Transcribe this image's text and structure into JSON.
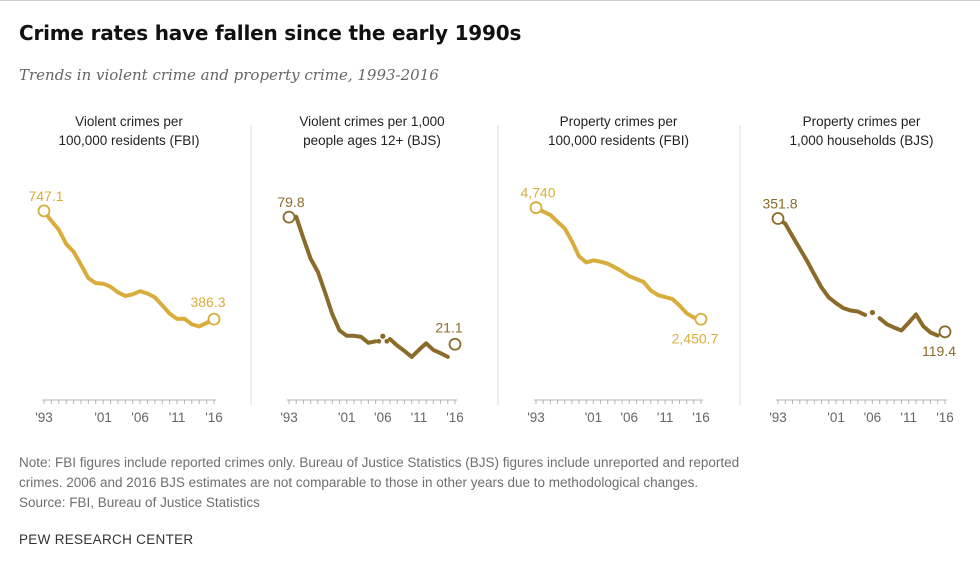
{
  "header": {
    "title": "Crime rates have fallen since the early 1990s",
    "subtitle": "Trends in violent crime and property crime, 1993-2016"
  },
  "footer": {
    "note_line1": "Note: FBI figures include reported crimes only. Bureau of Justice Statistics (BJS) figures include unreported and reported",
    "note_line2": "crimes. 2006 and 2016 BJS estimates are not comparable to those in other years due to methodological changes.",
    "source": "Source: FBI, Bureau of Justice Statistics",
    "credit": "PEW RESEARCH CENTER"
  },
  "colors": {
    "fbi": "#d9ad3c",
    "bjs": "#8b6b2a",
    "axis": "#b5b5b5",
    "tick_label": "#666666",
    "divider": "#dddddd"
  },
  "chart_data": [
    {
      "type": "line",
      "title_line1": "Violent crimes per",
      "title_line2": "100,000 residents (FBI)",
      "color_key": "fbi",
      "x": [
        1993,
        1994,
        1995,
        1996,
        1997,
        1998,
        1999,
        2000,
        2001,
        2002,
        2003,
        2004,
        2005,
        2006,
        2007,
        2008,
        2009,
        2010,
        2011,
        2012,
        2013,
        2014,
        2015,
        2016
      ],
      "values": [
        747.1,
        713.6,
        684.5,
        636.6,
        611.0,
        567.6,
        523.0,
        506.5,
        504.5,
        494.4,
        475.8,
        463.2,
        469.0,
        479.3,
        471.8,
        458.6,
        431.9,
        404.5,
        387.1,
        387.8,
        369.1,
        361.6,
        373.7,
        386.3
      ],
      "ylim": [
        150,
        800
      ],
      "x_ticks": [
        "'93",
        "'01",
        "'06",
        "'11",
        "'16"
      ],
      "x_tick_years": [
        1993,
        2001,
        2006,
        2011,
        2016
      ],
      "start_label": "747.1",
      "end_label": "386.3",
      "start_label_pos": "above",
      "end_label_pos": "above"
    },
    {
      "type": "line",
      "title_line1": "Violent crimes per 1,000",
      "title_line2": "people ages 12+ (BJS)",
      "color_key": "bjs",
      "x": [
        1993,
        1994,
        1995,
        1996,
        1997,
        1998,
        1999,
        2000,
        2001,
        2002,
        2003,
        2004,
        2005,
        2006,
        2007,
        2008,
        2009,
        2010,
        2011,
        2012,
        2013,
        2014,
        2015,
        2016
      ],
      "values": [
        79.8,
        80.0,
        70.0,
        60.5,
        54.5,
        45.0,
        35.0,
        27.5,
        25.0,
        25.0,
        24.5,
        21.8,
        22.5,
        24.8,
        23.5,
        20.5,
        18.0,
        15.3,
        18.5,
        21.5,
        18.5,
        17.0,
        15.3,
        21.1
      ],
      "separate_points": [
        2006,
        2016
      ],
      "ylim": [
        0,
        90
      ],
      "x_ticks": [
        "'93",
        "'01",
        "'06",
        "'11",
        "'16"
      ],
      "x_tick_years": [
        1993,
        2001,
        2006,
        2011,
        2016
      ],
      "start_label": "79.8",
      "end_label": "21.1",
      "start_label_pos": "above",
      "end_label_pos": "above"
    },
    {
      "type": "line",
      "title_line1": "Property crimes per",
      "title_line2": "100,000 residents (FBI)",
      "color_key": "fbi",
      "x": [
        1993,
        1994,
        1995,
        1996,
        1997,
        1998,
        1999,
        2000,
        2001,
        2002,
        2003,
        2004,
        2005,
        2006,
        2007,
        2008,
        2009,
        2010,
        2011,
        2012,
        2013,
        2014,
        2015,
        2016
      ],
      "values": [
        4740,
        4660,
        4591,
        4451,
        4316,
        4052,
        3743,
        3618,
        3658,
        3631,
        3591,
        3514,
        3432,
        3334,
        3277,
        3215,
        3041,
        2946,
        2905,
        2868,
        2733,
        2574,
        2487,
        2450.7
      ],
      "ylim": [
        1000,
        5000
      ],
      "x_ticks": [
        "'93",
        "'01",
        "'06",
        "'11",
        "'16"
      ],
      "x_tick_years": [
        1993,
        2001,
        2006,
        2011,
        2016
      ],
      "start_label": "4,740",
      "end_label": "2,450.7",
      "start_label_pos": "above",
      "end_label_pos": "below"
    },
    {
      "type": "line",
      "title_line1": "Property crimes per",
      "title_line2": "1,000 households (BJS)",
      "color_key": "bjs",
      "x": [
        1993,
        1994,
        1995,
        1996,
        1997,
        1998,
        1999,
        2000,
        2001,
        2002,
        2003,
        2004,
        2005,
        2006,
        2007,
        2008,
        2009,
        2010,
        2011,
        2012,
        2013,
        2014,
        2015,
        2016
      ],
      "values": [
        351.8,
        341.2,
        315.5,
        290.0,
        265.0,
        237.0,
        210.0,
        190.0,
        178.0,
        168.0,
        163.0,
        161.0,
        154.0,
        159.0,
        147.0,
        135.0,
        128.0,
        122.0,
        138.0,
        155.0,
        131.0,
        118.0,
        111.8,
        119.4
      ],
      "separate_points": [
        2006,
        2016
      ],
      "ylim": [
        0,
        400
      ],
      "x_ticks": [
        "'93",
        "'01",
        "'06",
        "'11",
        "'16"
      ],
      "x_tick_years": [
        1993,
        2001,
        2006,
        2011,
        2016
      ],
      "start_label": "351.8",
      "end_label": "119.4",
      "start_label_pos": "above",
      "end_label_pos": "below"
    }
  ]
}
